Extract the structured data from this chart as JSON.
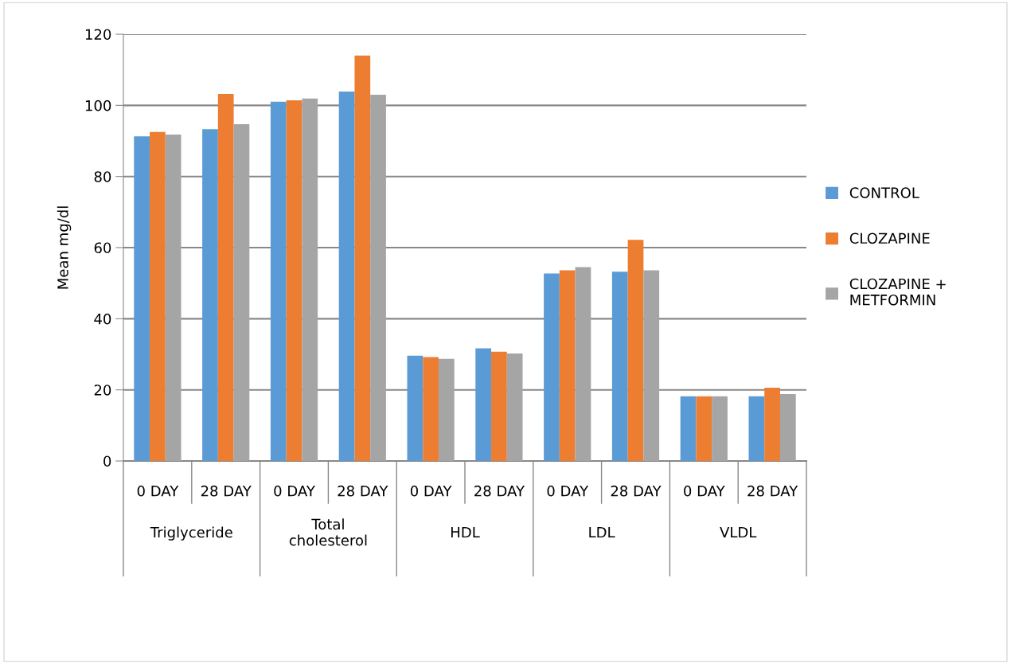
{
  "chart_data": {
    "type": "bar",
    "ylabel": "Mean mg/dl",
    "categories": [
      "0 DAY",
      "28 DAY",
      "0 DAY",
      "28 DAY",
      "0 DAY",
      "28 DAY",
      "0 DAY",
      "28 DAY",
      "0 DAY",
      "28 DAY"
    ],
    "annotations": [
      "Triglyceride",
      "Total\ncholesterol",
      "HDL",
      "LDL",
      "VLDL"
    ],
    "series": [
      {
        "name": "CONTROL",
        "color": "#5b9bd5",
        "values": [
          91.3,
          93.3,
          101.0,
          103.9,
          29.6,
          31.7,
          52.7,
          53.2,
          18.2,
          18.2
        ]
      },
      {
        "name": "CLOZAPINE",
        "color": "#ed7d31",
        "values": [
          92.5,
          103.2,
          101.4,
          114.0,
          29.2,
          30.7,
          53.6,
          62.2,
          18.2,
          20.6
        ]
      },
      {
        "name": "CLOZAPINE +\nMETFORMIN",
        "color": "#a5a5a5",
        "values": [
          91.8,
          94.7,
          101.9,
          103.0,
          28.7,
          30.2,
          54.5,
          53.6,
          18.2,
          18.8
        ]
      }
    ],
    "ylim": [
      0,
      120
    ],
    "yticks": [
      0,
      20,
      40,
      60,
      80,
      100,
      120
    ],
    "grid": "y",
    "legend": "right"
  }
}
